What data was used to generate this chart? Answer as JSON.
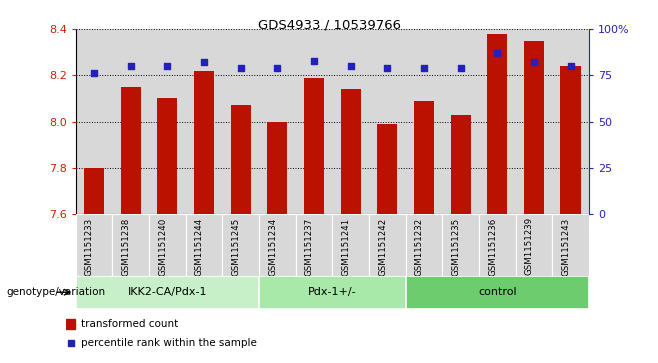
{
  "title": "GDS4933 / 10539766",
  "categories": [
    "GSM1151233",
    "GSM1151238",
    "GSM1151240",
    "GSM1151244",
    "GSM1151245",
    "GSM1151234",
    "GSM1151237",
    "GSM1151241",
    "GSM1151242",
    "GSM1151232",
    "GSM1151235",
    "GSM1151236",
    "GSM1151239",
    "GSM1151243"
  ],
  "bar_values": [
    7.8,
    8.15,
    8.1,
    8.22,
    8.07,
    8.0,
    8.19,
    8.14,
    7.99,
    8.09,
    8.03,
    8.38,
    8.35,
    8.24
  ],
  "percentile_values": [
    76,
    80,
    80,
    82,
    79,
    79,
    83,
    80,
    79,
    79,
    79,
    87,
    82,
    80
  ],
  "bar_bottom": 7.6,
  "ylim_left": [
    7.6,
    8.4
  ],
  "ylim_right": [
    0,
    100
  ],
  "yticks_left": [
    7.6,
    7.8,
    8.0,
    8.2,
    8.4
  ],
  "yticks_right": [
    0,
    25,
    50,
    75,
    100
  ],
  "ytick_labels_right": [
    "0",
    "25",
    "50",
    "75",
    "100%"
  ],
  "bar_color": "#BB1100",
  "dot_color": "#2222BB",
  "groups": [
    {
      "label": "IKK2-CA/Pdx-1",
      "start": 0,
      "end": 5
    },
    {
      "label": "Pdx-1+/-",
      "start": 5,
      "end": 9
    },
    {
      "label": "control",
      "start": 9,
      "end": 14
    }
  ],
  "group_colors": [
    "#c8f0c8",
    "#a8e8a8",
    "#6dcc6d"
  ],
  "xlabel_left": "genotype/variation",
  "legend_items": [
    {
      "color": "#BB1100",
      "label": "transformed count",
      "marker": "rect"
    },
    {
      "color": "#2222BB",
      "label": "percentile rank within the sample",
      "marker": "square"
    }
  ],
  "tick_label_color_left": "#CC2200",
  "tick_label_color_right": "#2222BB",
  "bar_width": 0.55,
  "dot_size": 22,
  "col_bg_color": "#d8d8d8"
}
